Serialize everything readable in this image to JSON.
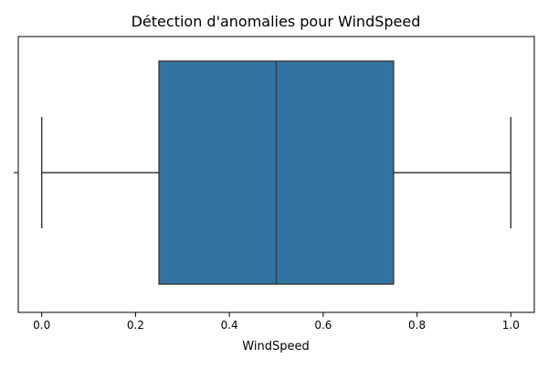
{
  "chart_data": {
    "type": "box",
    "title": "Détection d'anomalies pour WindSpeed",
    "xlabel": "WindSpeed",
    "ylabel": "",
    "orientation": "horizontal",
    "xlim": [
      -0.05,
      1.05
    ],
    "xticks": [
      0.0,
      0.2,
      0.4,
      0.6,
      0.8,
      1.0
    ],
    "xtick_labels": [
      "0.0",
      "0.2",
      "0.4",
      "0.6",
      "0.8",
      "1.0"
    ],
    "grid": false,
    "series": [
      {
        "whisker_low": 0.0,
        "q1": 0.25,
        "median": 0.5,
        "q3": 0.75,
        "whisker_high": 1.0,
        "outliers": []
      }
    ],
    "colors": {
      "box_fill": "#3274a1",
      "line": "#3d3d3d",
      "axis": "#000000"
    }
  }
}
